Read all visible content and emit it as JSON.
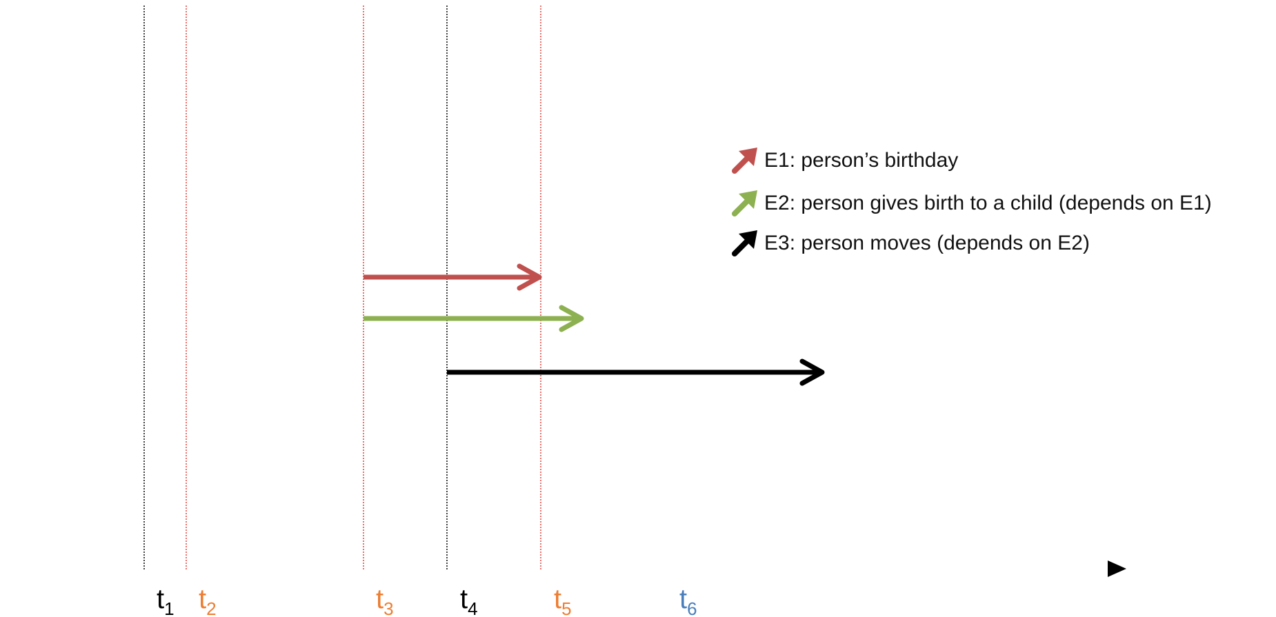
{
  "diagram": {
    "time_points": [
      {
        "label": "t",
        "sub": "1",
        "color": "#000000",
        "guide_color": "#000000"
      },
      {
        "label": "t",
        "sub": "2",
        "color": "#ED7D31",
        "guide_color": "#E0403A"
      },
      {
        "label": "t",
        "sub": "3",
        "color": "#ED7D31",
        "guide_color": "#E0403A"
      },
      {
        "label": "t",
        "sub": "4",
        "color": "#000000",
        "guide_color": "#000000"
      },
      {
        "label": "t",
        "sub": "5",
        "color": "#ED7D31",
        "guide_color": "#E0403A"
      },
      {
        "label": "t",
        "sub": "6",
        "color": "#4A7EBB",
        "guide_color": null
      }
    ],
    "events": [
      {
        "id": "E1",
        "label": "E1: person’s birthday",
        "color": "#C0504D",
        "start": "t3",
        "end": "t5"
      },
      {
        "id": "E2",
        "label": "E2: person gives birth to a child (depends on E1)",
        "color": "#8DB050",
        "start": "t3",
        "end": "after t5"
      },
      {
        "id": "E3",
        "label": "E3: person moves (depends on E2)",
        "color": "#000000",
        "start": "t4",
        "end": "open"
      }
    ]
  }
}
